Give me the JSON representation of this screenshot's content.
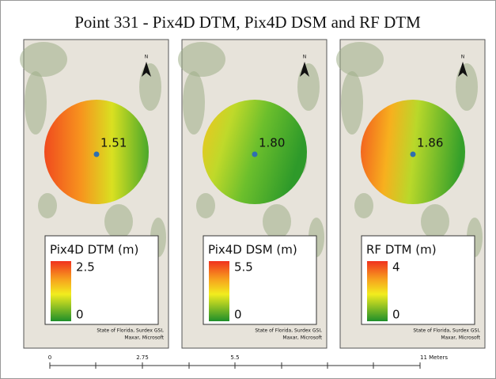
{
  "title": "Point 331 - Pix4D DTM, Pix4D DSM and RF DTM",
  "panels": [
    {
      "north": "N",
      "point_value": "1.51",
      "legend": {
        "title": "Pix4D DTM (m)",
        "max": "2.5",
        "min": "0"
      },
      "attribution": [
        "State of Florida, Surdex GSI,",
        "Maxar, Microsoft"
      ]
    },
    {
      "north": "N",
      "point_value": "1.80",
      "legend": {
        "title": "Pix4D DSM (m)",
        "max": "5.5",
        "min": "0"
      },
      "attribution": [
        "State of Florida, Surdex GSI,",
        "Maxar, Microsoft"
      ]
    },
    {
      "north": "N",
      "point_value": "1.86",
      "legend": {
        "title": "RF DTM (m)",
        "max": "4",
        "min": "0"
      },
      "attribution": [
        "State of Florida, Surdex GSI,",
        "Maxar, Microsoft"
      ]
    }
  ],
  "scale_bar": {
    "labels": [
      "0",
      "2.75",
      "5.5",
      "11 Meters"
    ]
  }
}
